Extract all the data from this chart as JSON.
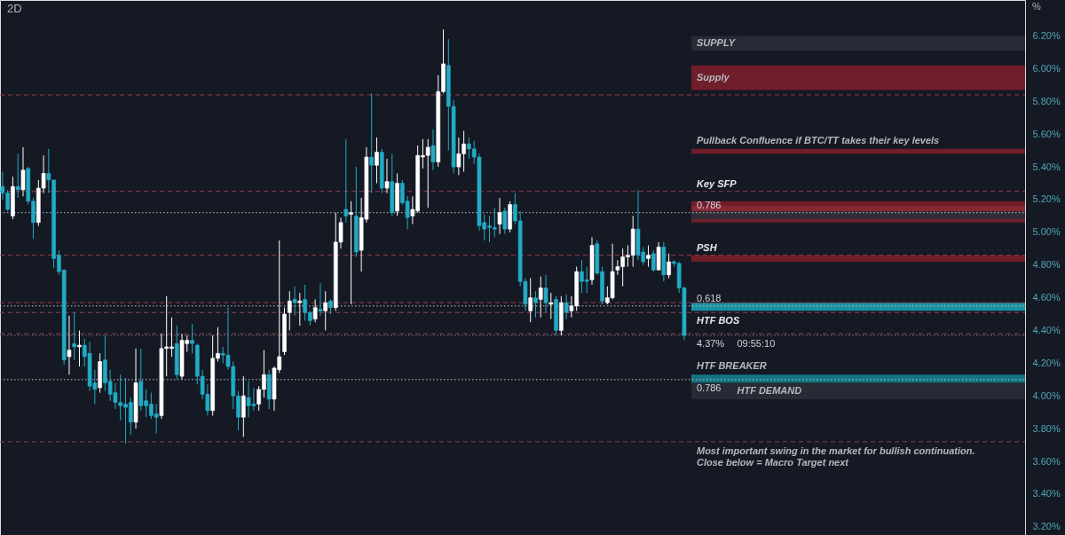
{
  "chart_data": {
    "type": "candlestick",
    "title": "2D",
    "categories": [
      null,
      null,
      null,
      null,
      null,
      null,
      null,
      null,
      null,
      null,
      null,
      null,
      null,
      null,
      null,
      null,
      null,
      null,
      null,
      null,
      null,
      null,
      null,
      null,
      null,
      null,
      null,
      null,
      null,
      null,
      null,
      null,
      null,
      null,
      null,
      null,
      null,
      null,
      null,
      null,
      null,
      null,
      null,
      null,
      null,
      null,
      null,
      null,
      null,
      null,
      null,
      null,
      null,
      null,
      null,
      null,
      null,
      null,
      null,
      null,
      null,
      null,
      null,
      null,
      null,
      null,
      null,
      null,
      null,
      null,
      null,
      null,
      null,
      null,
      null,
      null,
      null,
      null,
      null,
      null,
      null,
      null,
      null,
      null,
      null,
      null,
      null,
      null,
      null,
      null,
      null,
      null,
      null,
      null,
      null,
      null,
      null,
      null,
      null,
      null,
      null,
      null,
      null,
      null,
      null,
      null,
      null,
      null,
      null,
      null,
      null,
      null,
      null,
      null,
      null,
      null,
      null,
      null,
      null,
      null,
      null,
      null,
      null,
      null,
      null,
      null,
      null,
      null,
      null,
      null,
      null,
      null,
      null,
      null,
      null,
      null,
      null,
      null,
      null,
      null,
      null,
      null,
      null,
      null,
      null,
      null,
      null,
      null,
      null,
      null,
      null,
      null,
      null,
      null,
      null,
      null,
      null,
      null,
      null,
      null,
      null,
      null,
      null,
      null,
      null,
      null,
      null,
      null,
      null,
      null,
      null,
      null,
      null,
      null,
      null,
      null,
      null,
      null,
      null,
      null,
      null,
      null,
      null,
      null,
      null,
      null,
      null,
      null,
      null,
      null,
      null,
      null,
      null,
      null,
      null,
      null,
      null,
      null,
      null,
      null
    ],
    "ohlc": [
      [
        5.28,
        5.37,
        5.2,
        5.24
      ],
      [
        5.24,
        5.26,
        5.13,
        5.14
      ],
      [
        5.1,
        5.34,
        5.08,
        5.28
      ],
      [
        5.28,
        5.48,
        5.21,
        5.26
      ],
      [
        5.26,
        5.52,
        5.22,
        5.38
      ],
      [
        5.39,
        5.4,
        5.17,
        5.19
      ],
      [
        5.19,
        5.21,
        4.96,
        5.06
      ],
      [
        5.06,
        5.32,
        5.04,
        5.27
      ],
      [
        5.27,
        5.47,
        5.24,
        5.36
      ],
      [
        5.36,
        5.51,
        5.24,
        5.32
      ],
      [
        5.32,
        5.32,
        4.78,
        4.84
      ],
      [
        4.86,
        4.89,
        4.74,
        4.76
      ],
      [
        4.77,
        4.77,
        4.19,
        4.22
      ],
      [
        4.24,
        4.49,
        4.13,
        4.28
      ],
      [
        4.32,
        4.51,
        4.22,
        4.3
      ],
      [
        4.3,
        4.4,
        4.18,
        4.31
      ],
      [
        4.31,
        4.35,
        4.18,
        4.24
      ],
      [
        4.26,
        4.33,
        4.03,
        4.06
      ],
      [
        4.08,
        4.16,
        3.95,
        4.04
      ],
      [
        4.05,
        4.26,
        4.02,
        4.21
      ],
      [
        4.22,
        4.37,
        4.03,
        4.08
      ],
      [
        4.09,
        4.16,
        3.97,
        4.01
      ],
      [
        4.02,
        4.08,
        3.92,
        3.96
      ],
      [
        3.96,
        4.13,
        3.85,
        3.94
      ],
      [
        3.95,
        4.11,
        3.71,
        3.93
      ],
      [
        3.96,
        3.99,
        3.76,
        3.84
      ],
      [
        3.84,
        4.29,
        3.8,
        4.08
      ],
      [
        4.09,
        4.29,
        3.91,
        3.94
      ],
      [
        3.97,
        4.04,
        3.87,
        3.94
      ],
      [
        3.95,
        4.02,
        3.86,
        3.88
      ],
      [
        3.89,
        3.95,
        3.77,
        3.87
      ],
      [
        3.88,
        4.38,
        3.86,
        4.29
      ],
      [
        4.29,
        4.61,
        4.12,
        4.3
      ],
      [
        4.29,
        4.48,
        4.24,
        4.3
      ],
      [
        4.32,
        4.43,
        4.1,
        4.13
      ],
      [
        4.12,
        4.38,
        4.1,
        4.34
      ],
      [
        4.32,
        4.37,
        4.27,
        4.34
      ],
      [
        4.34,
        4.44,
        4.26,
        4.32
      ],
      [
        4.31,
        4.32,
        4.07,
        4.12
      ],
      [
        4.12,
        4.16,
        3.98,
        4.01
      ],
      [
        4.01,
        4.07,
        3.88,
        3.91
      ],
      [
        3.91,
        4.37,
        3.88,
        4.23
      ],
      [
        4.23,
        4.42,
        4.21,
        4.26
      ],
      [
        4.26,
        4.3,
        4.2,
        4.25
      ],
      [
        4.25,
        4.54,
        4.16,
        4.18
      ],
      [
        4.18,
        4.21,
        3.92,
        4.0
      ],
      [
        4.0,
        4.03,
        3.79,
        3.87
      ],
      [
        3.87,
        4.12,
        3.75,
        4.0
      ],
      [
        3.99,
        4.09,
        3.87,
        3.94
      ],
      [
        3.95,
        4.05,
        3.91,
        3.94
      ],
      [
        3.95,
        4.06,
        3.91,
        4.04
      ],
      [
        4.04,
        4.28,
        3.99,
        4.13
      ],
      [
        4.13,
        4.16,
        3.92,
        3.98
      ],
      [
        3.98,
        4.18,
        3.91,
        4.17
      ],
      [
        4.16,
        4.95,
        4.14,
        4.24
      ],
      [
        4.27,
        4.54,
        4.25,
        4.5
      ],
      [
        4.51,
        4.64,
        4.4,
        4.58
      ],
      [
        4.59,
        4.67,
        4.49,
        4.57
      ],
      [
        4.57,
        4.63,
        4.43,
        4.58
      ],
      [
        4.59,
        4.68,
        4.46,
        4.51
      ],
      [
        4.51,
        4.52,
        4.43,
        4.46
      ],
      [
        4.47,
        4.59,
        4.45,
        4.54
      ],
      [
        4.53,
        4.69,
        4.49,
        4.52
      ],
      [
        4.52,
        4.64,
        4.4,
        4.57
      ],
      [
        4.58,
        4.59,
        4.5,
        4.54
      ],
      [
        4.54,
        5.12,
        4.52,
        4.94
      ],
      [
        4.94,
        5.09,
        4.9,
        5.06
      ],
      [
        5.14,
        5.57,
        5.06,
        5.1
      ],
      [
        5.11,
        5.19,
        4.56,
        5.12
      ],
      [
        5.1,
        5.4,
        4.85,
        4.88
      ],
      [
        4.89,
        5.21,
        4.76,
        5.09
      ],
      [
        5.08,
        5.52,
        5.06,
        5.46
      ],
      [
        5.46,
        5.85,
        5.24,
        5.41
      ],
      [
        5.41,
        5.58,
        5.3,
        5.49
      ],
      [
        5.49,
        5.51,
        5.24,
        5.27
      ],
      [
        5.27,
        5.45,
        5.24,
        5.31
      ],
      [
        5.31,
        5.48,
        5.1,
        5.12
      ],
      [
        5.13,
        5.36,
        5.1,
        5.3
      ],
      [
        5.3,
        5.32,
        5.17,
        5.18
      ],
      [
        5.19,
        5.22,
        5.02,
        5.09
      ],
      [
        5.1,
        5.22,
        5.05,
        5.14
      ],
      [
        5.13,
        5.53,
        5.12,
        5.47
      ],
      [
        5.46,
        5.57,
        5.39,
        5.47
      ],
      [
        5.47,
        5.57,
        5.15,
        5.52
      ],
      [
        5.53,
        5.63,
        5.38,
        5.43
      ],
      [
        5.43,
        5.96,
        5.4,
        5.86
      ],
      [
        5.86,
        6.24,
        5.85,
        6.03
      ],
      [
        6.02,
        6.18,
        5.5,
        5.77
      ],
      [
        5.77,
        5.81,
        5.36,
        5.4
      ],
      [
        5.4,
        5.58,
        5.35,
        5.48
      ],
      [
        5.48,
        5.62,
        5.37,
        5.54
      ],
      [
        5.54,
        5.58,
        5.45,
        5.51
      ],
      [
        5.51,
        5.56,
        5.42,
        5.46
      ],
      [
        5.46,
        5.48,
        5.01,
        5.04
      ],
      [
        5.06,
        5.11,
        4.95,
        5.02
      ],
      [
        5.04,
        5.1,
        4.94,
        5.03
      ],
      [
        5.03,
        5.15,
        4.97,
        5.02
      ],
      [
        5.05,
        5.21,
        4.99,
        5.12
      ],
      [
        5.13,
        5.15,
        4.99,
        5.02
      ],
      [
        5.02,
        5.19,
        5.0,
        5.17
      ],
      [
        5.17,
        5.24,
        5.05,
        5.07
      ],
      [
        5.07,
        5.13,
        4.67,
        4.7
      ],
      [
        4.7,
        4.72,
        4.52,
        4.56
      ],
      [
        4.52,
        4.72,
        4.45,
        4.6
      ],
      [
        4.6,
        4.64,
        4.48,
        4.57
      ],
      [
        4.59,
        4.73,
        4.48,
        4.66
      ],
      [
        4.66,
        4.74,
        4.51,
        4.57
      ],
      [
        4.56,
        4.63,
        4.47,
        4.57
      ],
      [
        4.59,
        4.61,
        4.37,
        4.4
      ],
      [
        4.4,
        4.61,
        4.37,
        4.57
      ],
      [
        4.57,
        4.62,
        4.47,
        4.51
      ],
      [
        4.52,
        4.61,
        4.48,
        4.55
      ],
      [
        4.55,
        4.79,
        4.52,
        4.76
      ],
      [
        4.76,
        4.83,
        4.63,
        4.7
      ],
      [
        4.71,
        4.79,
        4.63,
        4.7
      ],
      [
        4.71,
        4.97,
        4.68,
        4.92
      ],
      [
        4.93,
        4.95,
        4.74,
        4.75
      ],
      [
        4.76,
        4.79,
        4.56,
        4.58
      ],
      [
        4.57,
        4.67,
        4.56,
        4.6
      ],
      [
        4.6,
        4.93,
        4.59,
        4.76
      ],
      [
        4.77,
        4.83,
        4.74,
        4.79
      ],
      [
        4.79,
        4.9,
        4.67,
        4.85
      ],
      [
        4.85,
        4.92,
        4.79,
        4.86
      ],
      [
        4.86,
        5.1,
        4.79,
        5.02
      ],
      [
        5.02,
        5.26,
        4.83,
        4.86
      ],
      [
        4.88,
        4.91,
        4.8,
        4.82
      ],
      [
        4.84,
        4.92,
        4.79,
        4.86
      ],
      [
        4.87,
        4.89,
        4.76,
        4.77
      ],
      [
        4.77,
        4.94,
        4.77,
        4.91
      ],
      [
        4.91,
        4.94,
        4.7,
        4.74
      ],
      [
        4.74,
        4.87,
        4.72,
        4.82
      ],
      [
        4.82,
        4.83,
        4.79,
        4.81
      ],
      [
        4.81,
        4.82,
        4.63,
        4.66
      ],
      [
        4.66,
        4.67,
        4.34,
        4.37
      ],
      null,
      null,
      null,
      null,
      null,
      null,
      null,
      null,
      null,
      null,
      null,
      null,
      null,
      null,
      null,
      null,
      null,
      null,
      null,
      null,
      null,
      null,
      null,
      null,
      null,
      null,
      null,
      null,
      null,
      null,
      null,
      null,
      null,
      null,
      null,
      null,
      null,
      null,
      null,
      null,
      null,
      null,
      null,
      null,
      null,
      null,
      null,
      null,
      null,
      null,
      null,
      null,
      null,
      null,
      null,
      null,
      null,
      null,
      null,
      null,
      null,
      null,
      null,
      null,
      null,
      null
    ],
    "colors": [
      "#22abc4",
      "#22abc4",
      "#ffffff",
      "#22abc4",
      "#ffffff",
      "#22abc4",
      "#22abc4",
      "#ffffff",
      "#ffffff",
      "#22abc4",
      "#22abc4",
      "#22abc4",
      "#22abc4",
      "#ffffff",
      "#22abc4",
      "#ffffff",
      "#22abc4",
      "#22abc4",
      "#22abc4",
      "#ffffff",
      "#22abc4",
      "#22abc4",
      "#22abc4",
      "#22abc4",
      "#22abc4",
      "#22abc4",
      "#ffffff",
      "#22abc4",
      "#22abc4",
      "#22abc4",
      "#22abc4",
      "#ffffff",
      "#ffffff",
      "#ffffff",
      "#22abc4",
      "#ffffff",
      "#ffffff",
      "#22abc4",
      "#22abc4",
      "#22abc4",
      "#22abc4",
      "#ffffff",
      "#ffffff",
      "#22abc4",
      "#22abc4",
      "#22abc4",
      "#22abc4",
      "#ffffff",
      "#22abc4",
      "#22abc4",
      "#ffffff",
      "#ffffff",
      "#22abc4",
      "#ffffff",
      "#ffffff",
      "#ffffff",
      "#ffffff",
      "#22abc4",
      "#ffffff",
      "#22abc4",
      "#22abc4",
      "#ffffff",
      "#22abc4",
      "#ffffff",
      "#22abc4",
      "#ffffff",
      "#ffffff",
      "#22abc4",
      "#ffffff",
      "#22abc4",
      "#ffffff",
      "#ffffff",
      "#22abc4",
      "#ffffff",
      "#22abc4",
      "#ffffff",
      "#22abc4",
      "#ffffff",
      "#22abc4",
      "#22abc4",
      "#ffffff",
      "#ffffff",
      "#ffffff",
      "#ffffff",
      "#22abc4",
      "#ffffff",
      "#ffffff",
      "#22abc4",
      "#22abc4",
      "#ffffff",
      "#ffffff",
      "#22abc4",
      "#22abc4",
      "#22abc4",
      "#22abc4",
      "#22abc4",
      "#22abc4",
      "#ffffff",
      "#22abc4",
      "#ffffff",
      "#22abc4",
      "#22abc4",
      "#22abc4",
      "#ffffff",
      "#22abc4",
      "#ffffff",
      "#22abc4",
      "#ffffff",
      "#22abc4",
      "#ffffff",
      "#22abc4",
      "#ffffff",
      "#ffffff",
      "#22abc4",
      "#22abc4",
      "#ffffff",
      "#22abc4",
      "#22abc4",
      "#ffffff",
      "#ffffff",
      "#ffffff",
      "#ffffff",
      "#ffffff",
      "#ffffff",
      "#22abc4",
      "#22abc4",
      "#ffffff",
      "#22abc4",
      "#ffffff",
      "#22abc4",
      "#ffffff",
      "#22abc4",
      "#22abc4",
      "#22abc4",
      null,
      null,
      null,
      null,
      null,
      null,
      null,
      null,
      null,
      null,
      null,
      null,
      null,
      null,
      null,
      null,
      null,
      null,
      null,
      null,
      null,
      null,
      null,
      null,
      null,
      null,
      null,
      null,
      null,
      null,
      null,
      null,
      null,
      null,
      null,
      null,
      null,
      null,
      null,
      null,
      null,
      null,
      null,
      null,
      null,
      null,
      null,
      null,
      null,
      null,
      null,
      null,
      null,
      null,
      null,
      null,
      null,
      null,
      null,
      null,
      null,
      null,
      null,
      null,
      null,
      null
    ],
    "ylim": [
      3.15,
      6.42
    ],
    "yticks": [
      {
        "value": 6.2,
        "label": "6.20%"
      },
      {
        "value": 6.0,
        "label": "6.00%"
      },
      {
        "value": 5.8,
        "label": "5.80%"
      },
      {
        "value": 5.6,
        "label": "5.60%"
      },
      {
        "value": 5.4,
        "label": "5.40%"
      },
      {
        "value": 5.2,
        "label": "5.20%"
      },
      {
        "value": 5.0,
        "label": "5.00%"
      },
      {
        "value": 4.8,
        "label": "4.80%"
      },
      {
        "value": 4.6,
        "label": "4.60%"
      },
      {
        "value": 4.4,
        "label": "4.40%"
      },
      {
        "value": 4.2,
        "label": "4.20%"
      },
      {
        "value": 4.0,
        "label": "4.00%"
      },
      {
        "value": 3.8,
        "label": "3.80%"
      },
      {
        "value": 3.6,
        "label": "3.60%"
      },
      {
        "value": 3.4,
        "label": "3.40%"
      },
      {
        "value": 3.2,
        "label": "3.20%"
      }
    ],
    "tick_labels": "y",
    "bands": [
      {
        "axis": "y",
        "from": 6.11,
        "to": 6.2,
        "label": "SUPPLY",
        "color": "#2a2e39"
      },
      {
        "axis": "y",
        "from": 5.87,
        "to": 6.02,
        "label": "Supply",
        "color": "#7a1f2b"
      },
      {
        "axis": "y",
        "from": 5.48,
        "to": 5.51,
        "label": "Pullback Confluence if BTC/TT takes their key levels",
        "color": "#7a1f2b"
      },
      {
        "axis": "y",
        "from": 5.06,
        "to": 5.19,
        "color": "#7a1f2b"
      },
      {
        "axis": "y",
        "from": 5.08,
        "to": 5.13,
        "color": "#2a2e39"
      },
      {
        "axis": "y",
        "from": 5.13,
        "to": 5.16,
        "color": "#8a2a36"
      },
      {
        "axis": "y",
        "from": 4.82,
        "to": 4.86,
        "color": "#7a1f2b"
      },
      {
        "axis": "y",
        "from": 4.52,
        "to": 4.57,
        "color": "#1b9fb0"
      },
      {
        "axis": "y",
        "from": 4.08,
        "to": 4.13,
        "label": "HTF BREAKER",
        "color": "#137e8e"
      },
      {
        "axis": "y",
        "from": 3.98,
        "to": 4.08,
        "label": "HTF DEMAND",
        "color": "#2a2e39"
      }
    ],
    "ref_lines": [
      {
        "axis": "y",
        "value": 5.84,
        "color": "#9c3a46",
        "line_style": "dashed"
      },
      {
        "axis": "y",
        "value": 4.57,
        "color": "#9c3a46",
        "line_style": "dashed"
      },
      {
        "axis": "y",
        "value": 4.38,
        "color": "#9c3a46",
        "line_style": "dashed"
      },
      {
        "axis": "y",
        "value": 5.25,
        "label": "Key SFP",
        "color": "#9c3a46",
        "line_style": "dashed"
      },
      {
        "axis": "y",
        "value": 4.86,
        "label": "PSH",
        "color": "#9c3a46",
        "line_style": "dashed"
      },
      {
        "axis": "y",
        "value": 4.51,
        "label": "HTF BOS",
        "color": "#9c3a46",
        "line_style": "dashed"
      },
      {
        "axis": "y",
        "value": 3.72,
        "label": "Most important swing in the market for bullish continuation.\nClose below = Macro Target next",
        "color": "#9c3a46",
        "line_style": "dashed"
      },
      {
        "axis": "y",
        "value": 5.12,
        "color": "#c8c8c8",
        "line_style": "dotted"
      },
      {
        "axis": "y",
        "value": 4.1,
        "color": "#c8c8c8",
        "line_style": "dotted"
      },
      {
        "axis": "y",
        "value": 4.55,
        "color": "#c8c8c8",
        "line_style": "dotted"
      },
      {
        "axis": "y",
        "value": 4.37,
        "color": "#787b86",
        "line_style": "dotted"
      }
    ],
    "annotations": [
      {
        "text": "0.786",
        "y": 5.12
      },
      {
        "text": "0.786",
        "y": 4.1
      },
      {
        "text": "0.618",
        "y": 4.55
      },
      {
        "text": "4.37%",
        "y": 4.37
      },
      {
        "text": "09:55:10",
        "y": 4.37
      },
      "%"
    ]
  }
}
